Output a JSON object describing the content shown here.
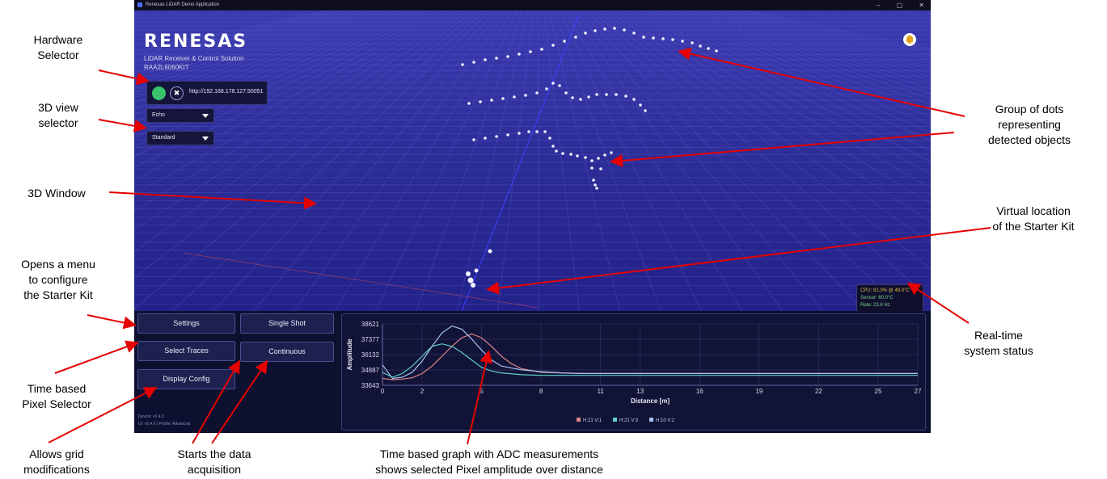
{
  "window": {
    "title": "Renesas LiDAR Demo Application",
    "minimize": "–",
    "maximize": "▢",
    "close": "✕"
  },
  "brand": {
    "logo": "RENESAS",
    "subtitle": "LiDAR Receiver & Control Solution",
    "kit": "RAA2L6060KIT"
  },
  "hardware": {
    "status_color": "#39c36a",
    "close_symbol": "✖",
    "url": "http://192.168.178.127:50051"
  },
  "dropdowns": {
    "mode": "Echo",
    "view": "Standard"
  },
  "status_panel": {
    "cpu": "CPU: 81.0% @ 49.0°C",
    "sensor": "Sensor: 60.0°C",
    "rate": "Rate: 23.8 Hz"
  },
  "buttons": {
    "settings": "Settings",
    "select_traces": "Select Traces",
    "display_config": "Display Config",
    "single_shot": "Single Shot",
    "continuous": "Continuous"
  },
  "versions": {
    "device": "Device: v0.4.3",
    "ui": "UI: v0.4.6 | Profile: Advanced"
  },
  "annotations": {
    "hardware_selector": [
      "Hardware",
      "Selector"
    ],
    "view_selector": [
      "3D view",
      "selector"
    ],
    "window_3d": "3D Window",
    "configure": [
      "Opens a menu",
      "to configure",
      "the Starter Kit"
    ],
    "pixel_selector": [
      "Time based",
      "Pixel Selector"
    ],
    "grid_mod": [
      "Allows grid",
      "modifications"
    ],
    "acquisition": [
      "Starts the data",
      "acquisition"
    ],
    "graph_desc": [
      "Time based graph with ADC measurements",
      "shows selected Pixel amplitude over distance"
    ],
    "dots": [
      "Group of dots",
      "representing",
      "detected objects"
    ],
    "virtual": [
      "Virtual location",
      "of the Starter Kit"
    ],
    "realtime": [
      "Real-time",
      "system status"
    ]
  },
  "chart_data": {
    "type": "line",
    "xlabel": "Distance [m]",
    "ylabel": "Amplitude",
    "xlim": [
      0,
      27
    ],
    "ylim": [
      33643,
      38621
    ],
    "x_ticks": [
      0,
      2,
      5,
      8,
      11,
      13,
      16,
      19,
      22,
      25,
      27
    ],
    "y_ticks": [
      33643,
      34887,
      36132,
      37377,
      38621
    ],
    "legend": "bottom-center",
    "series": [
      {
        "name": "H:21 V:1",
        "color": "#e0868c",
        "x": [
          0,
          0.5,
          1,
          1.5,
          2,
          2.5,
          3,
          3.5,
          4,
          4.5,
          5,
          5.5,
          6,
          6.5,
          7,
          8,
          9,
          10,
          11,
          13,
          16,
          19,
          22,
          25,
          27
        ],
        "y": [
          34200,
          34100,
          34150,
          34250,
          34600,
          35200,
          36000,
          36800,
          37500,
          37800,
          37500,
          36800,
          36000,
          35400,
          35000,
          34700,
          34650,
          34600,
          34600,
          34600,
          34600,
          34600,
          34600,
          34600,
          34600
        ]
      },
      {
        "name": "H:21 V:3",
        "color": "#5fd1c8",
        "x": [
          0,
          0.5,
          1,
          1.5,
          2,
          2.5,
          3,
          3.5,
          4,
          4.5,
          5,
          5.5,
          6,
          7,
          8,
          9,
          10,
          11,
          13,
          16,
          19,
          22,
          25,
          27
        ],
        "y": [
          34700,
          34300,
          34600,
          35200,
          36000,
          36800,
          37000,
          36800,
          36300,
          35700,
          35100,
          34800,
          34650,
          34500,
          34450,
          34450,
          34450,
          34450,
          34450,
          34450,
          34450,
          34450,
          34450,
          34450
        ]
      },
      {
        "name": "H:10 V:2",
        "color": "#a6c4f2",
        "x": [
          0,
          0.5,
          1,
          1.5,
          2,
          2.5,
          3,
          3.5,
          4,
          4.5,
          5,
          5.5,
          6,
          7,
          8,
          9,
          10,
          11,
          13,
          16,
          19,
          22,
          25,
          27
        ],
        "y": [
          35300,
          34200,
          34300,
          34700,
          35600,
          36800,
          37900,
          38450,
          38200,
          37400,
          36500,
          35700,
          35200,
          34900,
          34750,
          34650,
          34600,
          34600,
          34600,
          34600,
          34600,
          34600,
          34600,
          34600
        ]
      }
    ]
  }
}
